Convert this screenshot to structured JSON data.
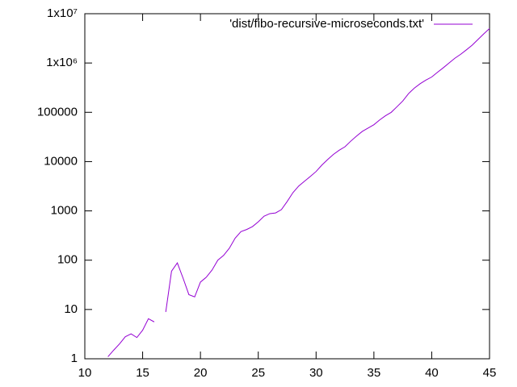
{
  "chart_data": {
    "type": "line",
    "x": [
      12,
      12.5,
      13,
      13.5,
      14,
      14.5,
      15,
      15.5,
      16,
      16.5,
      17,
      17.5,
      18,
      18.5,
      19,
      19.5,
      20,
      20.5,
      21,
      21.5,
      22,
      22.5,
      23,
      23.5,
      24,
      24.5,
      25,
      25.5,
      26,
      26.5,
      27,
      27.5,
      28,
      28.5,
      29,
      29.5,
      30,
      30.5,
      31,
      31.5,
      32,
      32.5,
      33,
      33.5,
      34,
      34.5,
      35,
      35.5,
      36,
      36.5,
      37,
      37.5,
      38,
      38.5,
      39,
      39.5,
      40,
      40.5,
      41,
      41.5,
      42,
      42.5,
      43,
      43.5,
      44,
      44.5,
      45
    ],
    "series": [
      {
        "name": "'dist/fibo-recursive-microseconds.txt'",
        "color": "#9400d3",
        "values": [
          1.1,
          1.5,
          2.0,
          2.8,
          3.2,
          2.7,
          3.8,
          6.5,
          5.6,
          null,
          8.9,
          60,
          88,
          43,
          20,
          18,
          36,
          45,
          63,
          100,
          125,
          175,
          280,
          380,
          420,
          480,
          600,
          780,
          880,
          910,
          1060,
          1550,
          2350,
          3200,
          4000,
          5000,
          6300,
          8500,
          11000,
          14000,
          17000,
          20000,
          26000,
          33000,
          41000,
          48000,
          56000,
          70000,
          85000,
          100000,
          130000,
          170000,
          240000,
          310000,
          380000,
          450000,
          520000,
          650000,
          800000,
          1000000,
          1250000,
          1500000,
          1850000,
          2300000,
          3000000,
          3900000,
          5000000
        ]
      }
    ],
    "xlim": [
      10,
      45
    ],
    "xticks": [
      10,
      15,
      20,
      25,
      30,
      35,
      40,
      45
    ],
    "ylim": [
      1,
      10000000
    ],
    "yticks": [
      1,
      10,
      100,
      1000,
      10000,
      100000,
      {
        "value": 1000000,
        "label": "1x10⁶"
      },
      {
        "value": 10000000,
        "label": "1x10⁷"
      }
    ],
    "ylog": true,
    "legend": "top-right",
    "border": true
  }
}
